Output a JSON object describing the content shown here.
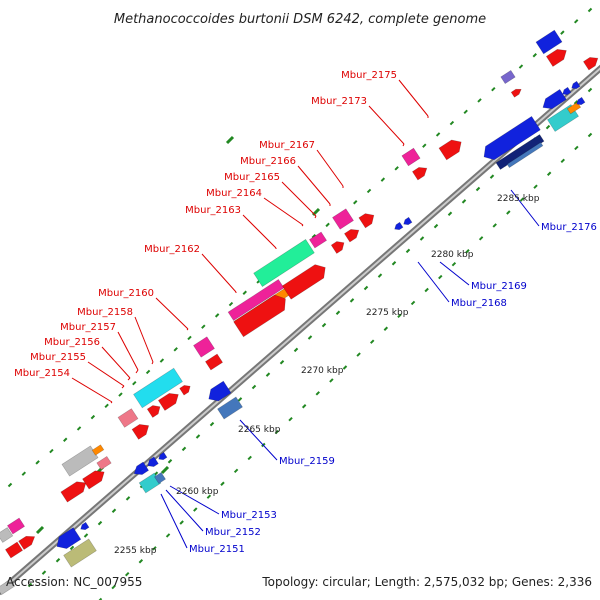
{
  "title": "Methanococcoides burtonii DSM 6242, complete genome",
  "accession": "Accession: NC_007955",
  "summary": "Topology: circular; Length: 2,575,032 bp; Genes: 2,336",
  "colors": {
    "forward_label": "#dd0000",
    "reverse_label": "#0000cc",
    "backbone": "#999999",
    "tick": "#228822",
    "red": "#ee1111",
    "magenta": "#ee2299",
    "pink": "#ee7788",
    "blue": "#1122dd",
    "steel": "#4477bb",
    "cyan": "#22ddee",
    "aqua": "#33cccc",
    "green": "#22ee99",
    "orange": "#ff8800",
    "gray": "#bbbbbb",
    "olive": "#bbbb77",
    "violet": "#7766cc",
    "navy": "#112277"
  },
  "scale_labels": [
    {
      "text": "2255 kbp"
    },
    {
      "text": "2260 kbp"
    },
    {
      "text": "2265 kbp"
    },
    {
      "text": "2270 kbp"
    },
    {
      "text": "2275 kbp"
    },
    {
      "text": "2280 kbp"
    },
    {
      "text": "2285 kbp"
    }
  ],
  "forward_labels": [
    "Mbur_2154",
    "Mbur_2155",
    "Mbur_2156",
    "Mbur_2157",
    "Mbur_2158",
    "Mbur_2160",
    "Mbur_2162",
    "Mbur_2163",
    "Mbur_2164",
    "Mbur_2165",
    "Mbur_2166",
    "Mbur_2167",
    "Mbur_2173",
    "Mbur_2175"
  ],
  "reverse_labels": [
    "Mbur_2151",
    "Mbur_2152",
    "Mbur_2153",
    "Mbur_2159",
    "Mbur_2168",
    "Mbur_2169",
    "Mbur_2176"
  ]
}
